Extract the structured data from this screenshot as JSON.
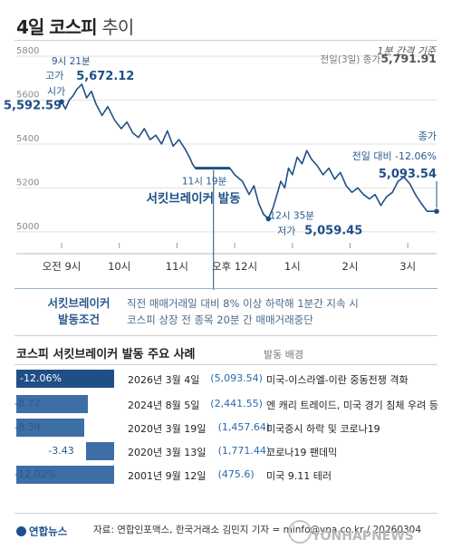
{
  "header": {
    "title_bold": "4일 코스피",
    "title_light": "추이",
    "interval_note": "1분 간격 기준"
  },
  "chart_data": {
    "type": "line",
    "series": [
      {
        "values": [
          [
            "09:00",
            5592.59
          ],
          [
            "09:04",
            5560
          ],
          [
            "09:08",
            5600
          ],
          [
            "09:12",
            5620
          ],
          [
            "09:16",
            5650
          ],
          [
            "09:21",
            5672.12
          ],
          [
            "09:26",
            5610
          ],
          [
            "09:31",
            5640
          ],
          [
            "09:36",
            5580
          ],
          [
            "09:42",
            5530
          ],
          [
            "09:48",
            5570
          ],
          [
            "09:55",
            5510
          ],
          [
            "10:02",
            5470
          ],
          [
            "10:08",
            5500
          ],
          [
            "10:14",
            5450
          ],
          [
            "10:20",
            5430
          ],
          [
            "10:26",
            5470
          ],
          [
            "10:32",
            5420
          ],
          [
            "10:38",
            5440
          ],
          [
            "10:44",
            5400
          ],
          [
            "10:50",
            5460
          ],
          [
            "10:56",
            5390
          ],
          [
            "11:02",
            5420
          ],
          [
            "11:08",
            5380
          ],
          [
            "11:13",
            5340
          ],
          [
            "11:16",
            5310
          ],
          [
            "11:19",
            5290
          ],
          [
            "11:55",
            5290
          ],
          [
            "12:00",
            5260
          ],
          [
            "12:08",
            5230
          ],
          [
            "12:15",
            5170
          ],
          [
            "12:20",
            5210
          ],
          [
            "12:25",
            5130
          ],
          [
            "12:30",
            5080
          ],
          [
            "12:35",
            5059.45
          ],
          [
            "12:40",
            5110
          ],
          [
            "12:44",
            5170
          ],
          [
            "12:48",
            5230
          ],
          [
            "12:52",
            5200
          ],
          [
            "12:56",
            5290
          ],
          [
            "13:00",
            5260
          ],
          [
            "13:05",
            5340
          ],
          [
            "13:10",
            5310
          ],
          [
            "13:15",
            5370
          ],
          [
            "13:20",
            5330
          ],
          [
            "13:26",
            5300
          ],
          [
            "13:32",
            5260
          ],
          [
            "13:38",
            5290
          ],
          [
            "13:44",
            5240
          ],
          [
            "13:50",
            5270
          ],
          [
            "13:56",
            5210
          ],
          [
            "14:02",
            5180
          ],
          [
            "14:08",
            5200
          ],
          [
            "14:14",
            5170
          ],
          [
            "14:20",
            5150
          ],
          [
            "14:26",
            5170
          ],
          [
            "14:32",
            5120
          ],
          [
            "14:38",
            5160
          ],
          [
            "14:44",
            5180
          ],
          [
            "14:50",
            5230
          ],
          [
            "14:56",
            5250
          ],
          [
            "15:02",
            5220
          ],
          [
            "15:08",
            5170
          ],
          [
            "15:14",
            5130
          ],
          [
            "15:20",
            5093.54
          ],
          [
            "15:30",
            5093.54
          ]
        ]
      }
    ],
    "y_ticks": [
      "5800",
      "5600",
      "5400",
      "5200",
      "5000"
    ],
    "ylim": [
      4950,
      5800
    ],
    "x_ticks": [
      "오전 9시",
      "10시",
      "11시",
      "오후 12시",
      "1시",
      "2시",
      "3시"
    ],
    "annotations": {
      "open_label": "시가",
      "open_value": "5,592.59",
      "high_time": "9시 21분",
      "high_label": "고가",
      "high_value": "5,672.12",
      "prev_close_label": "전일(3일) 종가",
      "prev_close_value": "5,791.91",
      "breaker_time": "11시 19분",
      "breaker_label": "서킷브레이커 발동",
      "low_time": "12시 35분",
      "low_label": "저가",
      "low_value": "5,059.45",
      "close_label": "종가",
      "close_change": "전일 대비 -12.06%",
      "close_value": "5,093.54"
    }
  },
  "circuit_breaker": {
    "label_line1": "서킷브레이커",
    "label_line2": "발동조건",
    "cond1": "직전 매매거래일 대비 8% 이상 하락해 1분간 지속 시",
    "cond2": "코스피 상장 전 종목 20분 간 매매거래중단"
  },
  "cases": {
    "title": "코스피 서킷브레이커 발동 주요 사례",
    "bg_header": "발동 배경",
    "rate_label": "하락률",
    "rows": [
      {
        "pct": "-12.06%",
        "value": 12.06,
        "date": "2026년 3월 4일",
        "close": "(5,093.54)",
        "reason": "미국-이스라엘-이란 중동전쟁 격화"
      },
      {
        "pct": "-8.77",
        "value": 8.77,
        "date": "2024년 8월 5일",
        "close": "(2,441.55)",
        "reason": "엔 캐리 트레이드, 미국 경기 침체 우려 등"
      },
      {
        "pct": "-8.39",
        "value": 8.39,
        "date": "2020년 3월 19일",
        "close": "(1,457.64)",
        "reason": "미국증시 하락 및 코로나19"
      },
      {
        "pct": "-3.43",
        "value": 3.43,
        "date": "2020년 3월 13일",
        "close": "(1,771.44)",
        "reason": "코로나19 팬데믹"
      },
      {
        "pct": "-12.02%",
        "value": 12.02,
        "date": "2001년 9월 12일",
        "close": "(475.6)",
        "reason": "미국 9.11 테러"
      }
    ]
  },
  "footer": {
    "logo": "연합뉴스",
    "source": "자료: 연합인포맥스, 한국거래소   김민지 기자 = minfo@yna.co.kr / 20260304",
    "watermark": "YONHAPNEWS"
  },
  "colors": {
    "line": "#1f4f86",
    "accent": "#2a5a8c",
    "bar": "#3d6ea6",
    "breaker": "#1f4f86"
  }
}
